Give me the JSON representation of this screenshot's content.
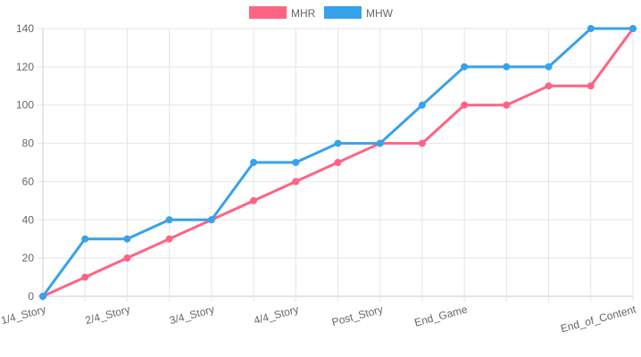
{
  "chart_data": {
    "type": "line",
    "categories": [
      "1/4_Story",
      "",
      "2/4_Story",
      "",
      "3/4_Story",
      "",
      "4/4_Story",
      "",
      "Post_Story",
      "",
      "End_Game",
      "",
      "",
      "",
      "End_of_Content"
    ],
    "series": [
      {
        "name": "MHR",
        "color": "#ff6384",
        "values": [
          0,
          10,
          20,
          30,
          40,
          50,
          60,
          70,
          80,
          80,
          100,
          100,
          110,
          110,
          140
        ]
      },
      {
        "name": "MHW",
        "color": "#36a2eb",
        "values": [
          0,
          30,
          30,
          40,
          40,
          70,
          70,
          80,
          80,
          100,
          120,
          120,
          120,
          140,
          140
        ]
      }
    ],
    "y_ticks": [
      0,
      20,
      40,
      60,
      80,
      100,
      120,
      140
    ],
    "ylim": [
      0,
      140
    ],
    "grid": true,
    "legend_position": "top-center"
  }
}
